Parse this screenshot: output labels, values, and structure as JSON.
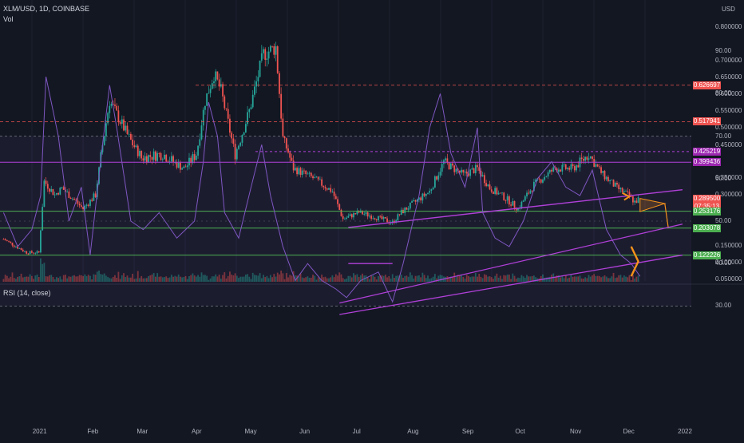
{
  "header": {
    "symbol": "XLM/USD, 1D, COINBASE",
    "volume_label": "Vol",
    "currency": "USD",
    "rsi_label": "RSI (14, close)"
  },
  "colors": {
    "background": "#131722",
    "up": "#26a69a",
    "down": "#ef5350",
    "resistance": "#ef5350",
    "pattern": "#b040d8",
    "support": "#4caf50",
    "projection": "#f7931a",
    "rsi": "#7e57c2"
  },
  "price_ticks": [
    "0.800000",
    "0.700000",
    "0.650000",
    "0.600000",
    "0.550000",
    "0.500000",
    "0.450000",
    "0.350000",
    "0.300000",
    "0.150000",
    "0.100000",
    "0.050000"
  ],
  "price_badges": [
    {
      "label": "0.626697",
      "color": "#ef5350"
    },
    {
      "label": "0.517941",
      "color": "#ef5350"
    },
    {
      "label": "0.425219",
      "color": "#9c27b0"
    },
    {
      "label": "0.399436",
      "color": "#9c27b0"
    },
    {
      "label": "0.289500",
      "color": "#ef5350"
    },
    {
      "label": "07:35:13",
      "color": "#ef5350"
    },
    {
      "label": "0.253176",
      "color": "#4caf50"
    },
    {
      "label": "0.203078",
      "color": "#4caf50"
    },
    {
      "label": "0.122226",
      "color": "#4caf50"
    }
  ],
  "rsi_ticks": [
    "90.00",
    "80.00",
    "70.00",
    "60.00",
    "50.00",
    "40.00",
    "30.00"
  ],
  "x_ticks": [
    "2021",
    "Feb",
    "Mar",
    "Apr",
    "May",
    "Jun",
    "Jul",
    "Aug",
    "Sep",
    "Oct",
    "Nov",
    "Dec",
    "2022"
  ],
  "chart_data": [
    {
      "type": "candlestick",
      "title": "XLM/USD, 1D, COINBASE",
      "ylabel": "USD",
      "x_range": [
        "2020-12-10",
        "2022-01-05"
      ],
      "ylim": [
        0.05,
        0.82
      ],
      "price_path": [
        [
          "2020-12-12",
          0.17
        ],
        [
          "2020-12-25",
          0.13
        ],
        [
          "2021-01-01",
          0.13
        ],
        [
          "2021-01-04",
          0.34
        ],
        [
          "2021-01-10",
          0.3
        ],
        [
          "2021-01-14",
          0.32
        ],
        [
          "2021-01-26",
          0.26
        ],
        [
          "2021-02-02",
          0.3
        ],
        [
          "2021-02-06",
          0.45
        ],
        [
          "2021-02-10",
          0.58
        ],
        [
          "2021-02-20",
          0.48
        ],
        [
          "2021-02-28",
          0.41
        ],
        [
          "2021-03-12",
          0.42
        ],
        [
          "2021-03-24",
          0.38
        ],
        [
          "2021-03-31",
          0.42
        ],
        [
          "2021-04-05",
          0.58
        ],
        [
          "2021-04-10",
          0.66
        ],
        [
          "2021-04-14",
          0.61
        ],
        [
          "2021-04-22",
          0.42
        ],
        [
          "2021-04-30",
          0.55
        ],
        [
          "2021-05-08",
          0.72
        ],
        [
          "2021-05-15",
          0.74
        ],
        [
          "2021-05-19",
          0.47
        ],
        [
          "2021-05-25",
          0.38
        ],
        [
          "2021-06-05",
          0.35
        ],
        [
          "2021-06-16",
          0.31
        ],
        [
          "2021-06-22",
          0.23
        ],
        [
          "2021-07-01",
          0.25
        ],
        [
          "2021-07-20",
          0.22
        ],
        [
          "2021-07-25",
          0.25
        ],
        [
          "2021-08-10",
          0.31
        ],
        [
          "2021-08-18",
          0.4
        ],
        [
          "2021-08-29",
          0.36
        ],
        [
          "2021-09-06",
          0.38
        ],
        [
          "2021-09-13",
          0.32
        ],
        [
          "2021-09-22",
          0.29
        ],
        [
          "2021-09-29",
          0.26
        ],
        [
          "2021-10-08",
          0.33
        ],
        [
          "2021-10-20",
          0.38
        ],
        [
          "2021-10-30",
          0.38
        ],
        [
          "2021-11-08",
          0.42
        ],
        [
          "2021-11-16",
          0.36
        ],
        [
          "2021-11-24",
          0.32
        ],
        [
          "2021-11-30",
          0.3
        ],
        [
          "2021-12-04",
          0.28
        ],
        [
          "2021-12-07",
          0.2895
        ]
      ],
      "levels": [
        {
          "price": 0.626697,
          "style": "resistance"
        },
        {
          "price": 0.517941,
          "style": "resistance"
        },
        {
          "price": 0.425219,
          "style": "pattern"
        },
        {
          "price": 0.399436,
          "style": "pattern"
        },
        {
          "price": 0.253176,
          "style": "support"
        },
        {
          "price": 0.203078,
          "style": "support"
        },
        {
          "price": 0.122226,
          "style": "support"
        }
      ],
      "ascending_trendline": [
        [
          "2021-06-25",
          0.205
        ],
        [
          "2021-12-31",
          0.315
        ]
      ],
      "current_price": 0.2895,
      "projected_target": 0.203078
    },
    {
      "type": "line",
      "title": "RSI (14, close)",
      "ylim": [
        25,
        90
      ],
      "overbought": 70,
      "oversold": 30,
      "series": [
        {
          "name": "RSI (14, close)",
          "points": [
            [
              "2020-12-12",
              52
            ],
            [
              "2020-12-20",
              44
            ],
            [
              "2020-12-28",
              48
            ],
            [
              "2021-01-02",
              56
            ],
            [
              "2021-01-05",
              84
            ],
            [
              "2021-01-12",
              70
            ],
            [
              "2021-01-18",
              50
            ],
            [
              "2021-01-25",
              58
            ],
            [
              "2021-01-30",
              42
            ],
            [
              "2021-02-06",
              68
            ],
            [
              "2021-02-10",
              82
            ],
            [
              "2021-02-14",
              72
            ],
            [
              "2021-02-22",
              50
            ],
            [
              "2021-03-01",
              48
            ],
            [
              "2021-03-10",
              52
            ],
            [
              "2021-03-20",
              46
            ],
            [
              "2021-03-30",
              50
            ],
            [
              "2021-04-04",
              64
            ],
            [
              "2021-04-07",
              78
            ],
            [
              "2021-04-12",
              70
            ],
            [
              "2021-04-16",
              52
            ],
            [
              "2021-04-24",
              46
            ],
            [
              "2021-05-01",
              58
            ],
            [
              "2021-05-07",
              68
            ],
            [
              "2021-05-12",
              56
            ],
            [
              "2021-05-19",
              44
            ],
            [
              "2021-05-26",
              36
            ],
            [
              "2021-06-02",
              40
            ],
            [
              "2021-06-10",
              36
            ],
            [
              "2021-06-18",
              34
            ],
            [
              "2021-06-24",
              32
            ],
            [
              "2021-07-02",
              36
            ],
            [
              "2021-07-12",
              38
            ],
            [
              "2021-07-20",
              31
            ],
            [
              "2021-07-26",
              40
            ],
            [
              "2021-08-04",
              56
            ],
            [
              "2021-08-10",
              72
            ],
            [
              "2021-08-16",
              80
            ],
            [
              "2021-08-22",
              66
            ],
            [
              "2021-08-30",
              58
            ],
            [
              "2021-09-06",
              72
            ],
            [
              "2021-09-09",
              52
            ],
            [
              "2021-09-16",
              46
            ],
            [
              "2021-09-24",
              44
            ],
            [
              "2021-10-02",
              50
            ],
            [
              "2021-10-10",
              60
            ],
            [
              "2021-10-18",
              64
            ],
            [
              "2021-10-26",
              58
            ],
            [
              "2021-11-03",
              56
            ],
            [
              "2021-11-10",
              62
            ],
            [
              "2021-11-18",
              48
            ],
            [
              "2021-11-26",
              42
            ],
            [
              "2021-12-02",
              40
            ],
            [
              "2021-12-07",
              37
            ]
          ]
        }
      ],
      "trendlines": [
        [
          [
            "2021-06-20",
            30.7
          ],
          [
            "2021-12-31",
            49.3
          ]
        ],
        [
          [
            "2021-06-20",
            28.0
          ],
          [
            "2021-12-31",
            42.0
          ]
        ],
        [
          [
            "2021-06-25",
            40.0
          ],
          [
            "2021-07-20",
            40.0
          ]
        ]
      ]
    }
  ]
}
